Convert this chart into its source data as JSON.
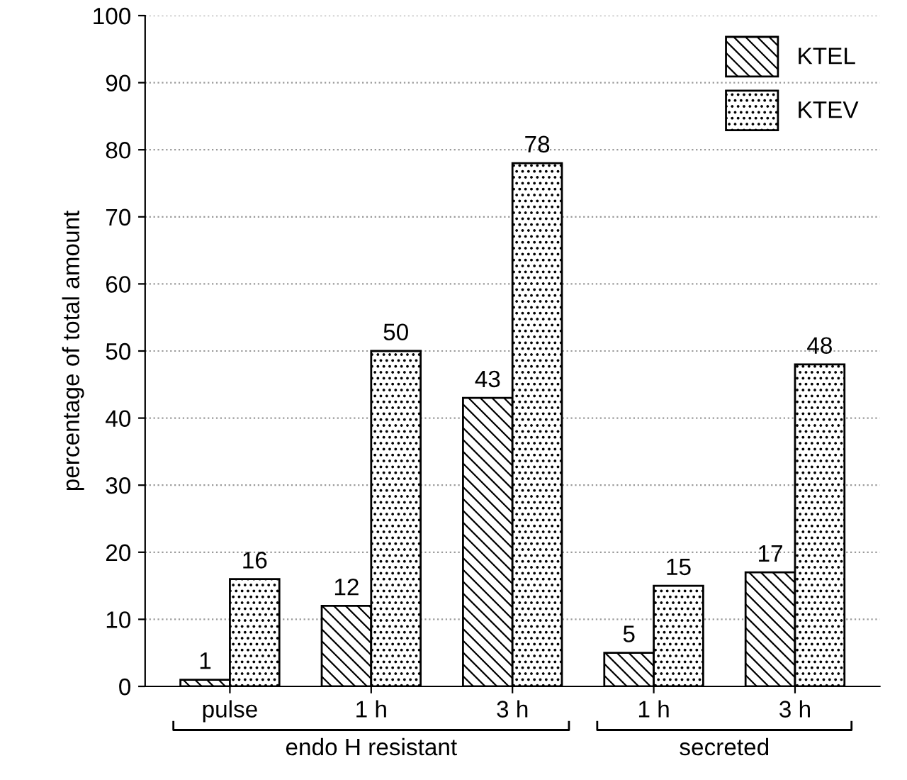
{
  "chart_data": {
    "type": "bar",
    "ylabel": "percentage of total amount",
    "categories": [
      "pulse",
      "1 h",
      "3 h",
      "1 h",
      "3 h"
    ],
    "series": [
      {
        "name": "KTEL",
        "color": "#000000",
        "values": [
          1,
          12,
          43,
          5,
          17
        ]
      },
      {
        "name": "KTEV",
        "color": "#000000",
        "values": [
          16,
          50,
          78,
          15,
          48
        ]
      }
    ],
    "ylim": [
      0,
      100
    ],
    "yticks": [
      0,
      10,
      20,
      30,
      40,
      50,
      60,
      70,
      80,
      90,
      100
    ],
    "grid": "y",
    "legend": "top right",
    "data_labels": true,
    "annotations": [
      "endo H resistant",
      "secreted"
    ]
  }
}
